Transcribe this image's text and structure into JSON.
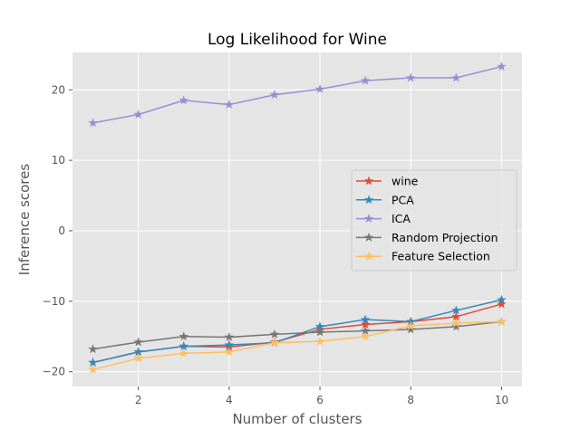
{
  "chart_data": {
    "type": "line",
    "title": "Log Likelihood for Wine",
    "xlabel": "Number of clusters",
    "ylabel": "Inference scores",
    "xlim": [
      0.55,
      10.45
    ],
    "ylim": [
      -22.1,
      25.3
    ],
    "xticks": [
      2,
      4,
      6,
      8,
      10
    ],
    "yticks": [
      -20,
      -10,
      0,
      10,
      20
    ],
    "xtick_labels": [
      "2",
      "4",
      "6",
      "8",
      "10"
    ],
    "ytick_labels": [
      "−20",
      "−10",
      "0",
      "10",
      "20"
    ],
    "grid": true,
    "legend_position": "center-right",
    "x": [
      1,
      2,
      3,
      4,
      5,
      6,
      7,
      8,
      9,
      10
    ],
    "series": [
      {
        "name": "wine",
        "color": "#E24A33",
        "values": [
          -18.7,
          -17.2,
          -16.4,
          -16.5,
          -15.8,
          -14.0,
          -13.3,
          -12.9,
          -12.2,
          -10.4
        ]
      },
      {
        "name": "PCA",
        "color": "#348ABD",
        "values": [
          -18.7,
          -17.2,
          -16.4,
          -16.2,
          -15.9,
          -13.6,
          -12.6,
          -12.9,
          -11.3,
          -9.8
        ]
      },
      {
        "name": "ICA",
        "color": "#988ED5",
        "values": [
          15.3,
          16.5,
          18.5,
          17.9,
          19.3,
          20.1,
          21.3,
          21.7,
          21.7,
          23.3
        ]
      },
      {
        "name": "Random Projection",
        "color": "#777777",
        "values": [
          -16.8,
          -15.8,
          -15.0,
          -15.1,
          -14.7,
          -14.4,
          -14.2,
          -14.0,
          -13.6,
          -12.9
        ]
      },
      {
        "name": "Feature Selection",
        "color": "#FBC15E",
        "values": [
          -19.7,
          -18.1,
          -17.4,
          -17.2,
          -15.9,
          -15.7,
          -15.0,
          -13.5,
          -13.1,
          -12.9
        ]
      }
    ]
  }
}
